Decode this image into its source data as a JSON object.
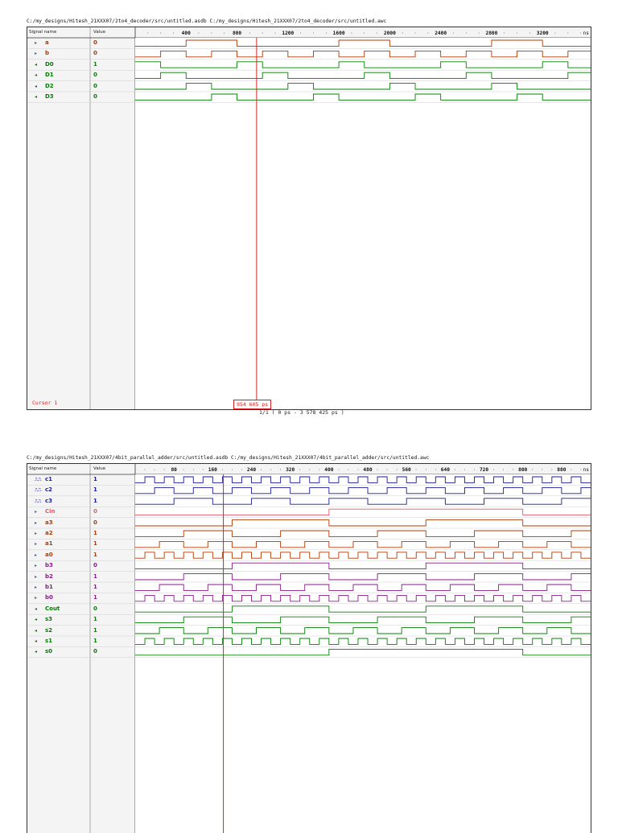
{
  "sim1": {
    "title": "C:/my_designs/Hitesh_21XXX07/2to4_decoder/src/untitled.asdb C:/my_designs/Hitesh_21XXX07/2to4_decoder/src/untitled.awc",
    "header": {
      "name": "Signal name",
      "value": "Value"
    },
    "ruler": {
      "labels": [
        "400",
        "800",
        "1200",
        "1600",
        "2000",
        "2400",
        "2800",
        "3200"
      ],
      "unit": "ns",
      "start_ns": 0,
      "end_ns": 3578
    },
    "cursor_ns": 954,
    "cursor_label": "Cursor 1",
    "cursor_value": "954 605 ps",
    "range": "1/1 ( 0 ps - 3 578 425 ps )",
    "signals": [
      {
        "name": "a",
        "value": "0",
        "kind": "input",
        "color": "#b03a00",
        "edges_ns": [
          400,
          800,
          1600,
          2000,
          2800,
          3200
        ]
      },
      {
        "name": "b",
        "value": "0",
        "kind": "input",
        "color": "#b03a00",
        "edges_ns": [
          200,
          400,
          600,
          800,
          1000,
          1200,
          1400,
          1600,
          1800,
          2000,
          2200,
          2400,
          2600,
          2800,
          3000,
          3200,
          3400
        ]
      },
      {
        "name": "D0",
        "value": "1",
        "kind": "output",
        "color": "#008000",
        "edges_ns": [
          0,
          200,
          800,
          1000,
          1600,
          1800,
          2400,
          2600,
          3200,
          3400
        ]
      },
      {
        "name": "D1",
        "value": "0",
        "kind": "output",
        "color": "#008000",
        "edges_ns": [
          200,
          400,
          1000,
          1200,
          1800,
          2000,
          2600,
          2800,
          3400,
          3578
        ]
      },
      {
        "name": "D2",
        "value": "0",
        "kind": "output",
        "color": "#008000",
        "edges_ns": [
          400,
          600,
          1200,
          1400,
          2000,
          2200,
          2800,
          3000
        ]
      },
      {
        "name": "D3",
        "value": "0",
        "kind": "output",
        "color": "#008000",
        "edges_ns": [
          600,
          800,
          1400,
          1600,
          2200,
          2400,
          3000,
          3200
        ]
      }
    ]
  },
  "sim2": {
    "title": "C:/my_designs/Hitesh_21XXX07/4bit_parallel_adder/src/untitled.asdb C:/my_designs/Hitesh_21XXX07/4bit_parallel_adder/src/untitled.awc",
    "header": {
      "name": "Signal name",
      "value": "Value"
    },
    "ruler": {
      "labels": [
        "80",
        "160",
        "240",
        "320",
        "400",
        "480",
        "560",
        "640",
        "720",
        "800",
        "880"
      ],
      "unit": "ns",
      "start_ns": 0,
      "end_ns": 940
    },
    "cursor_ns": 182,
    "signals": [
      {
        "name": "c1",
        "value": "1",
        "kind": "clock",
        "color": "#1a1a9a",
        "period_ns": 40,
        "phase_ns": 20
      },
      {
        "name": "c2",
        "value": "1",
        "kind": "clock",
        "color": "#1a1a9a",
        "period_ns": 80,
        "phase_ns": 40
      },
      {
        "name": "c3",
        "value": "1",
        "kind": "clock",
        "color": "#1a1a9a",
        "period_ns": 160,
        "phase_ns": 80
      },
      {
        "name": "Cin",
        "value": "0",
        "kind": "input",
        "color": "#e05a6a",
        "edges_ns": [
          400,
          800
        ]
      },
      {
        "name": "a3",
        "value": "0",
        "kind": "input",
        "color": "#b03a00",
        "edges_ns": [
          200,
          400,
          600,
          800
        ]
      },
      {
        "name": "a2",
        "value": "1",
        "kind": "input",
        "color": "#b03a00",
        "period_ns": 200,
        "phase_ns": 100
      },
      {
        "name": "a1",
        "value": "1",
        "kind": "input",
        "color": "#b03a00",
        "period_ns": 100,
        "phase_ns": 50
      },
      {
        "name": "a0",
        "value": "1",
        "kind": "input",
        "color": "#b03a00",
        "period_ns": 40,
        "phase_ns": 20
      },
      {
        "name": "b3",
        "value": "0",
        "kind": "input",
        "color": "#8a1a8a",
        "edges_ns": [
          200,
          400,
          600,
          800
        ]
      },
      {
        "name": "b2",
        "value": "1",
        "kind": "input",
        "color": "#8a1a8a",
        "period_ns": 200,
        "phase_ns": 100
      },
      {
        "name": "b1",
        "value": "1",
        "kind": "input",
        "color": "#8a1a8a",
        "period_ns": 100,
        "phase_ns": 50
      },
      {
        "name": "b0",
        "value": "1",
        "kind": "input",
        "color": "#8a1a8a",
        "period_ns": 40,
        "phase_ns": 20
      },
      {
        "name": "Cout",
        "value": "0",
        "kind": "output",
        "color": "#008000",
        "edges_ns": [
          200,
          400,
          600,
          800
        ]
      },
      {
        "name": "s3",
        "value": "1",
        "kind": "output",
        "color": "#008000",
        "period_ns": 200,
        "phase_ns": 100
      },
      {
        "name": "s2",
        "value": "1",
        "kind": "output",
        "color": "#008000",
        "period_ns": 100,
        "phase_ns": 50
      },
      {
        "name": "s1",
        "value": "1",
        "kind": "output",
        "color": "#008000",
        "period_ns": 40,
        "phase_ns": 20
      },
      {
        "name": "s0",
        "value": "0",
        "kind": "output",
        "color": "#008000",
        "edges_ns": [
          400,
          800
        ]
      }
    ]
  },
  "colors": {
    "cursor": "#d42020",
    "grid": "#c8c8c8",
    "panel_bg": "#f4f4f4",
    "row_line": "#c8c8c8"
  }
}
